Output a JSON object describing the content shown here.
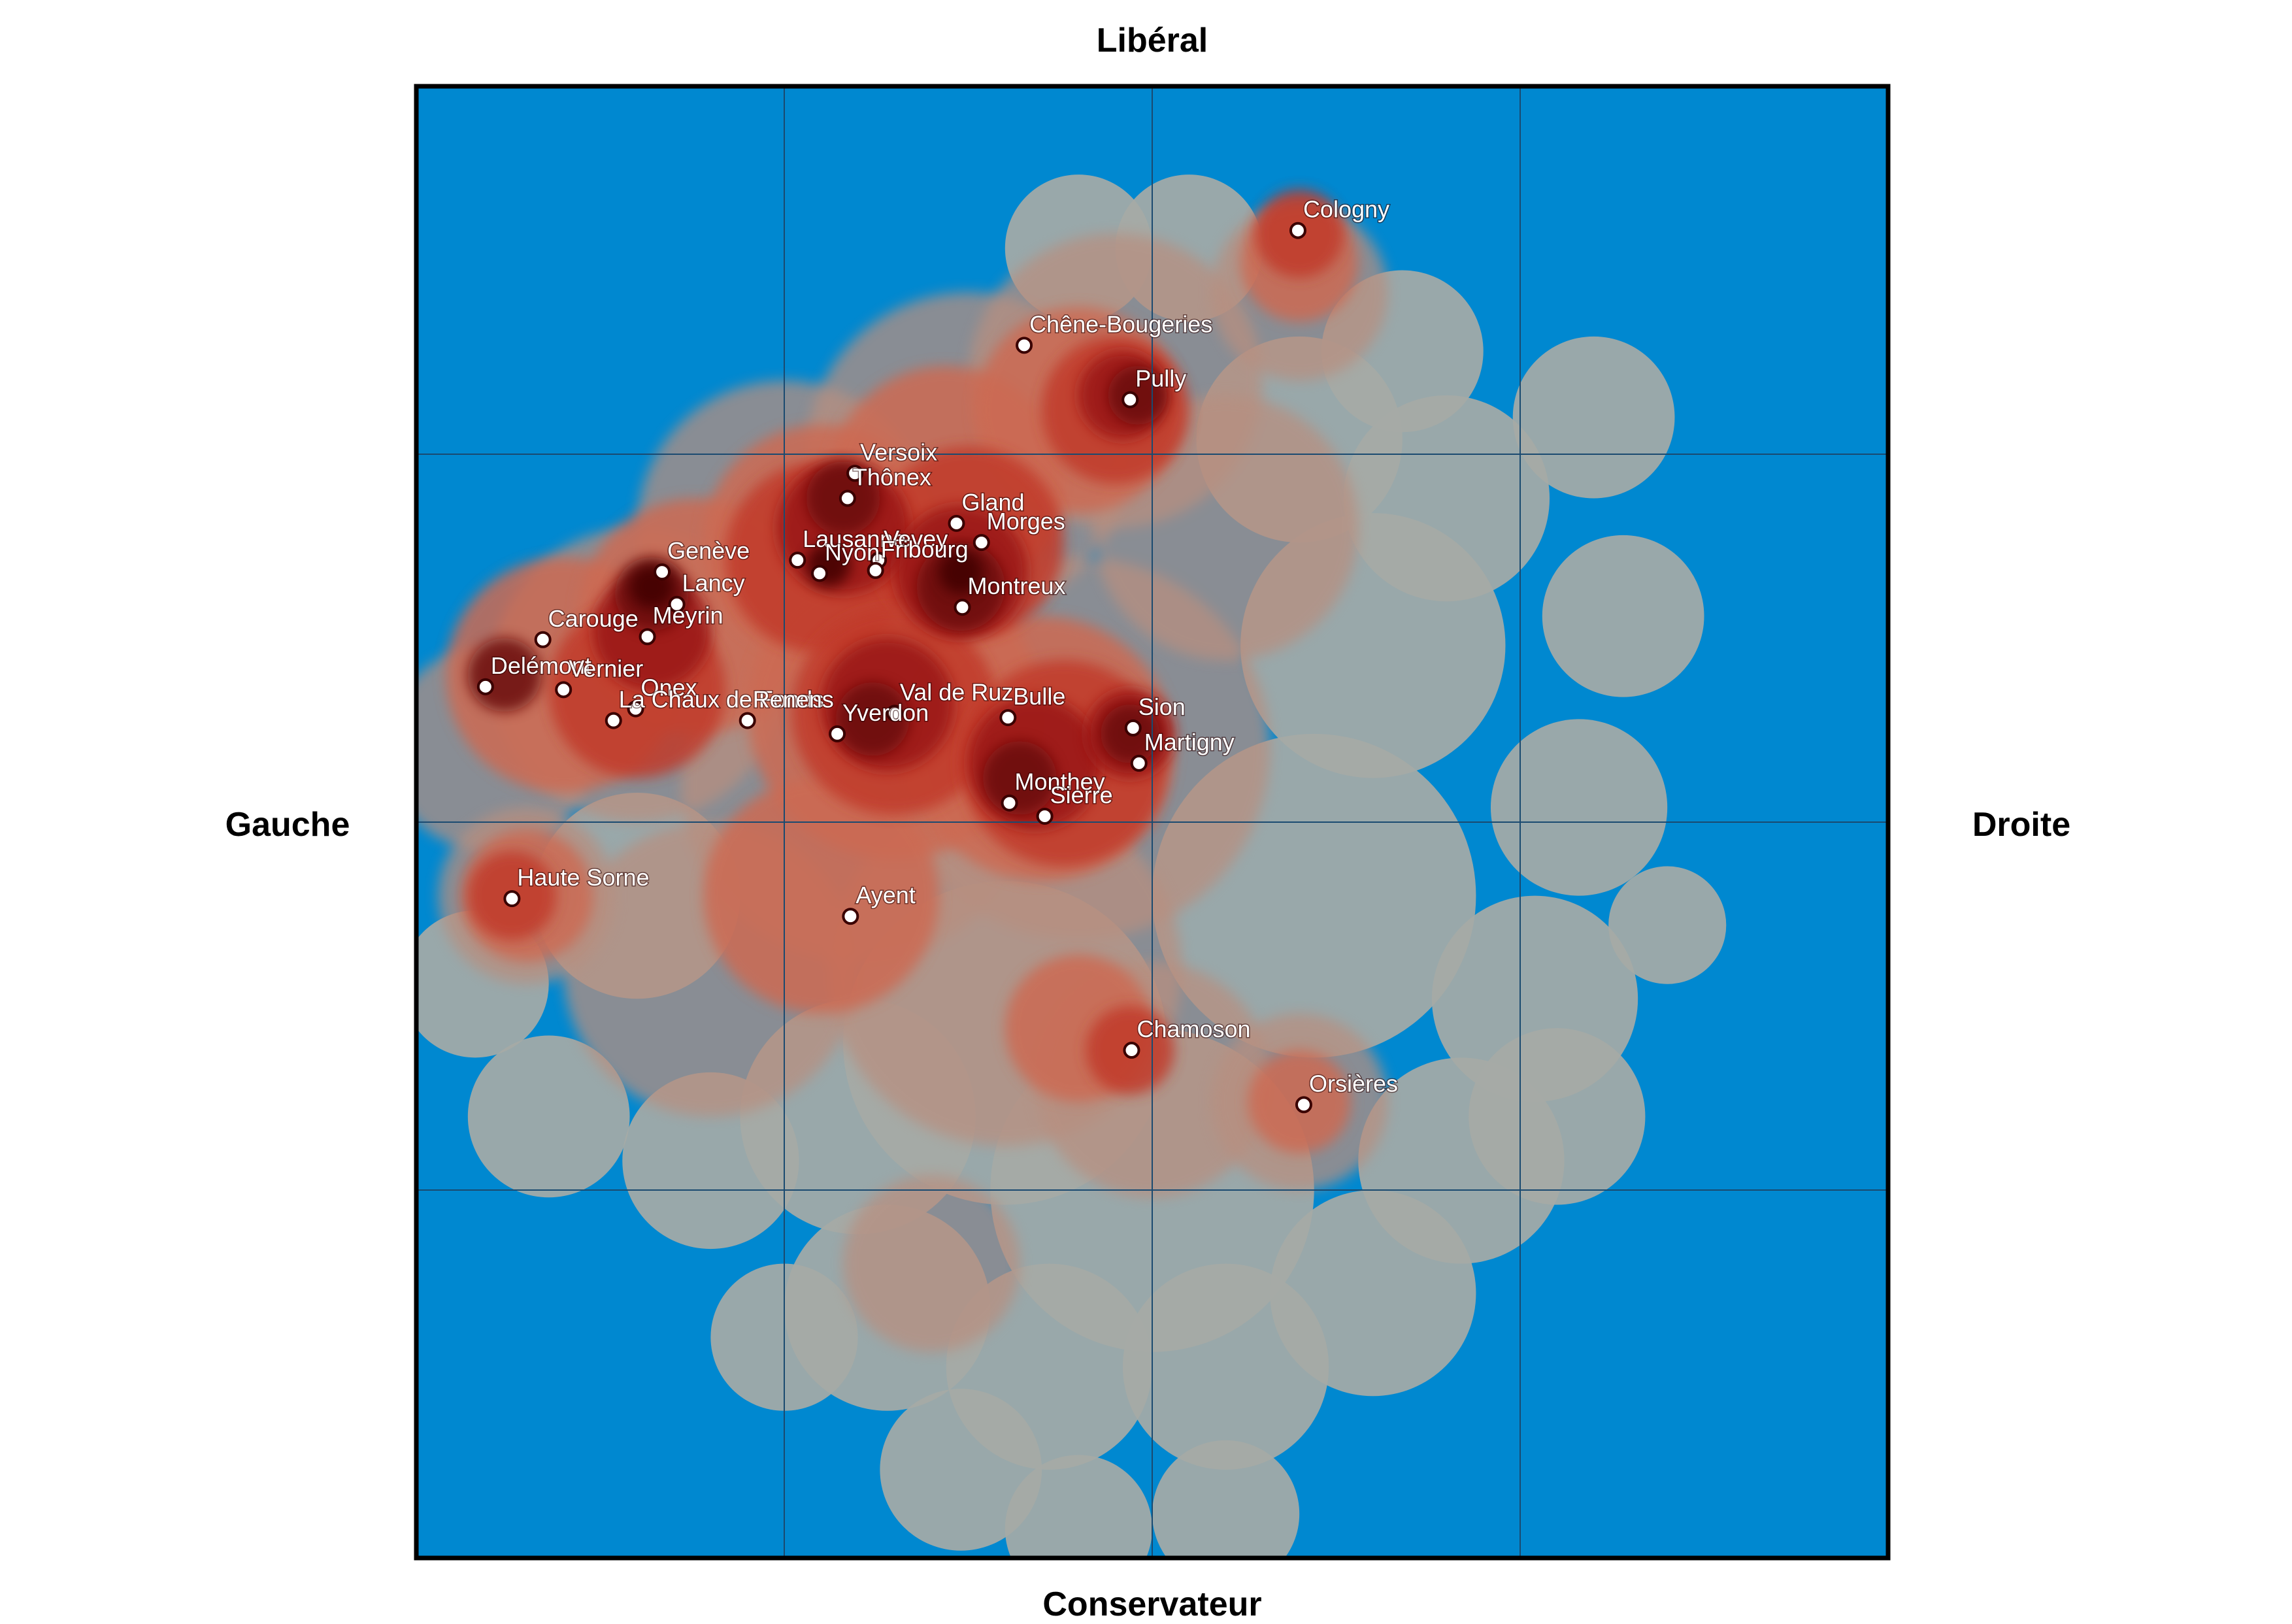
{
  "axes": {
    "top": "Libéral",
    "bottom": "Conservateur",
    "left": "Gauche",
    "right": "Droite"
  },
  "colors": {
    "background": "#0088d0",
    "grid": "#1a4a70",
    "frame": "#000000",
    "point_fill": "#ffffff",
    "point_stroke": "#3a0000",
    "shades": [
      "#a6aaa6",
      "#b78f80",
      "#cc6a52",
      "#c13a2a",
      "#9a1616",
      "#6b0a0a",
      "#3f0205"
    ]
  },
  "chart_data": {
    "type": "scatter",
    "title": "",
    "xlabel_left": "Gauche",
    "xlabel_right": "Droite",
    "ylabel_top": "Libéral",
    "ylabel_bottom": "Conservateur",
    "xlim": [
      -1,
      1
    ],
    "ylim": [
      -1,
      1
    ],
    "grid": true,
    "grid_divisions": 4,
    "density_overlay": true,
    "points": [
      {
        "name": "Cologny",
        "x": 0.198,
        "y": 0.804
      },
      {
        "name": "Chêne-Bougeries",
        "x": -0.174,
        "y": 0.648
      },
      {
        "name": "Pully",
        "x": -0.03,
        "y": 0.574
      },
      {
        "name": "Versoix",
        "x": -0.404,
        "y": 0.474
      },
      {
        "name": "Thônex",
        "x": -0.414,
        "y": 0.44
      },
      {
        "name": "Gland",
        "x": -0.266,
        "y": 0.406
      },
      {
        "name": "Morges",
        "x": -0.232,
        "y": 0.38
      },
      {
        "name": "Lausanne",
        "x": -0.482,
        "y": 0.356
      },
      {
        "name": "Nyon",
        "x": -0.452,
        "y": 0.338
      },
      {
        "name": "Vevey",
        "x": -0.372,
        "y": 0.356
      },
      {
        "name": "Fribourg",
        "x": -0.376,
        "y": 0.342
      },
      {
        "name": "Montreux",
        "x": -0.258,
        "y": 0.292
      },
      {
        "name": "Genève",
        "x": -0.666,
        "y": 0.34
      },
      {
        "name": "Lancy",
        "x": -0.646,
        "y": 0.296
      },
      {
        "name": "Carouge",
        "x": -0.828,
        "y": 0.248
      },
      {
        "name": "Meyrin",
        "x": -0.686,
        "y": 0.252
      },
      {
        "name": "Delémont",
        "x": -0.906,
        "y": 0.184
      },
      {
        "name": "Vernier",
        "x": -0.8,
        "y": 0.18
      },
      {
        "name": "Onex",
        "x": -0.702,
        "y": 0.154
      },
      {
        "name": "La Chaux de Fonds",
        "x": -0.732,
        "y": 0.138
      },
      {
        "name": "Renens",
        "x": -0.55,
        "y": 0.138
      },
      {
        "name": "Val de Ruz",
        "x": -0.35,
        "y": 0.148
      },
      {
        "name": "Yverdon",
        "x": -0.428,
        "y": 0.12
      },
      {
        "name": "Bulle",
        "x": -0.196,
        "y": 0.142
      },
      {
        "name": "Sion",
        "x": -0.026,
        "y": 0.128
      },
      {
        "name": "Martigny",
        "x": -0.018,
        "y": 0.08
      },
      {
        "name": "Monthey",
        "x": -0.194,
        "y": 0.026
      },
      {
        "name": "Sierre",
        "x": -0.146,
        "y": 0.008
      },
      {
        "name": "Haute Sorne",
        "x": -0.87,
        "y": -0.104
      },
      {
        "name": "Ayent",
        "x": -0.41,
        "y": -0.128
      },
      {
        "name": "Chamoson",
        "x": -0.028,
        "y": -0.31
      },
      {
        "name": "Orsières",
        "x": 0.206,
        "y": -0.384
      }
    ]
  }
}
